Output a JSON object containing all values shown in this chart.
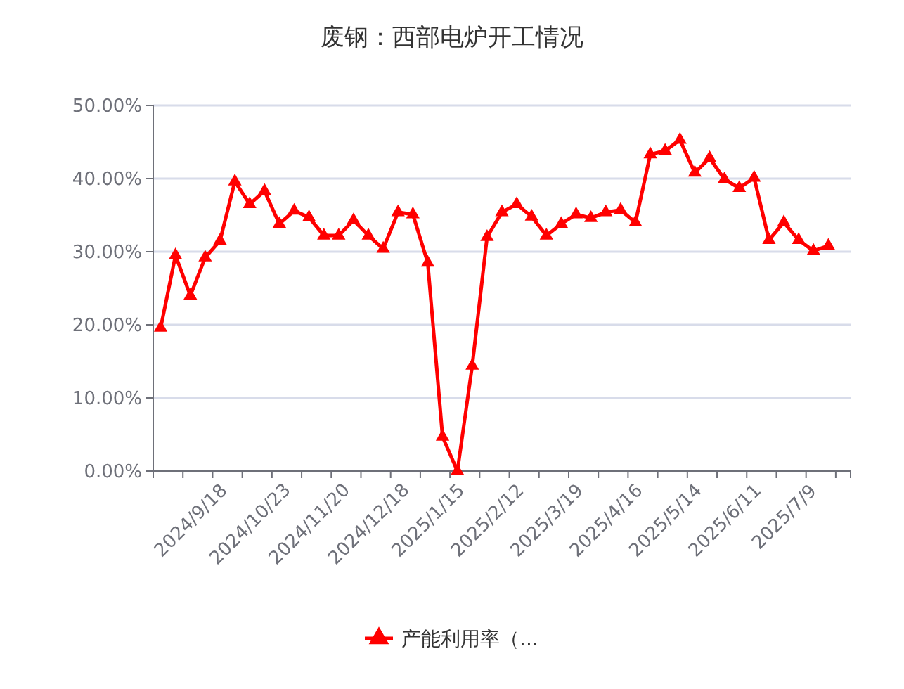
{
  "chart_data": {
    "type": "line",
    "title": "废钢：西部电炉开工情况",
    "categories": [
      null,
      null,
      "2024/9/18",
      null,
      null,
      null,
      "2024/10/23",
      null,
      null,
      null,
      "2024/11/20",
      null,
      null,
      null,
      "2024/12/18",
      null,
      null,
      null,
      "2025/1/15",
      null,
      null,
      null,
      "2025/2/12",
      null,
      null,
      null,
      "2025/3/19",
      null,
      null,
      null,
      "2025/4/16",
      null,
      null,
      null,
      "2025/5/14",
      null,
      null,
      null,
      "2025/6/11",
      null,
      null,
      null,
      "2025/7/9",
      null,
      null,
      null,
      null
    ],
    "series": [
      {
        "name": "产能利用率（...",
        "color": "#ff0000",
        "values": [
          19.6,
          29.5,
          24.0,
          29.2,
          31.5,
          39.6,
          36.5,
          38.3,
          33.8,
          35.6,
          34.7,
          32.2,
          32.2,
          34.3,
          32.2,
          30.4,
          35.4,
          35.1,
          28.5,
          4.7,
          0,
          14.4,
          32.0,
          35.4,
          36.5,
          34.8,
          32.2,
          33.8,
          35.1,
          34.6,
          35.4,
          35.7,
          34.0,
          43.3,
          43.8,
          45.3,
          40.8,
          42.8,
          39.9,
          38.7,
          40.1,
          31.6,
          34.0,
          31.6,
          30.1,
          30.8,
          null
        ]
      }
    ],
    "ylim": [
      0,
      50
    ],
    "yticks": [
      {
        "value": 0,
        "label": "0.00%"
      },
      {
        "value": 10,
        "label": "10.00%"
      },
      {
        "value": 20,
        "label": "20.00%"
      },
      {
        "value": 30,
        "label": "30.00%"
      },
      {
        "value": 40,
        "label": "40.00%"
      },
      {
        "value": 50,
        "label": "50.00%"
      }
    ],
    "grid": "y",
    "legend": "bottom",
    "marker": "triangle",
    "line_style": "solid"
  }
}
